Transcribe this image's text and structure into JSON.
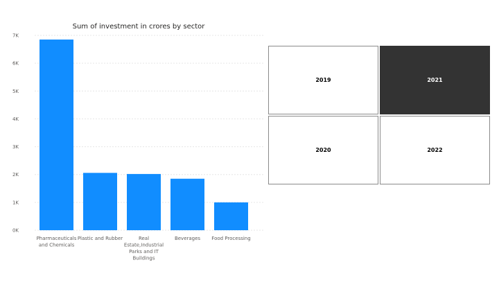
{
  "chart_data": {
    "type": "bar",
    "title": "Sum of investment in crores by sector",
    "categories": [
      "Pharmaceuticals and Chemicals",
      "Plastic and Rubber",
      "Real Estate,Industrial Parks and IT Buildings",
      "Beverages",
      "Food Processing"
    ],
    "category_lines": [
      [
        "Pharmaceuticals",
        "and Chemicals"
      ],
      [
        "Plastic and Rubber"
      ],
      [
        "Real",
        "Estate,Industrial",
        "Parks and IT",
        "Buildings"
      ],
      [
        "Beverages"
      ],
      [
        "Food Processing"
      ]
    ],
    "values": [
      6850,
      2060,
      2020,
      1850,
      1000
    ],
    "ylim": [
      0,
      7000
    ],
    "yticks": [
      0,
      1000,
      2000,
      3000,
      4000,
      5000,
      6000,
      7000
    ],
    "ytick_labels": [
      "0K",
      "1K",
      "2K",
      "3K",
      "4K",
      "5K",
      "6K",
      "7K"
    ],
    "xlabel": "",
    "ylabel": "",
    "grid": true,
    "bar_color": "#118DFF"
  },
  "slicer": {
    "tiles": [
      {
        "label": "2019",
        "selected": false
      },
      {
        "label": "2021",
        "selected": true
      },
      {
        "label": "2020",
        "selected": false
      },
      {
        "label": "2022",
        "selected": false
      }
    ],
    "selected_color": "#333333"
  }
}
